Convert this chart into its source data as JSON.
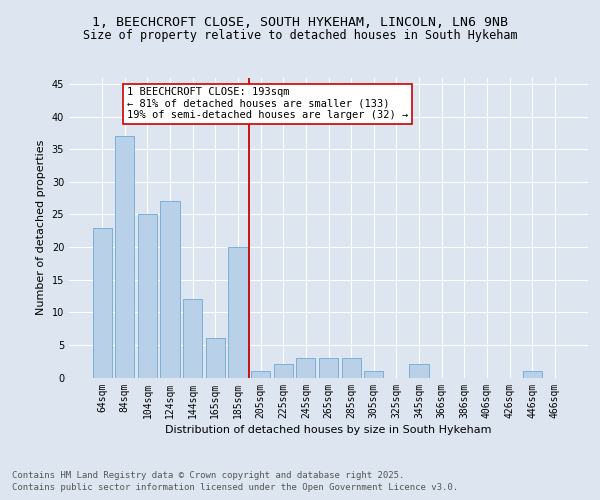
{
  "title_line1": "1, BEECHCROFT CLOSE, SOUTH HYKEHAM, LINCOLN, LN6 9NB",
  "title_line2": "Size of property relative to detached houses in South Hykeham",
  "xlabel": "Distribution of detached houses by size in South Hykeham",
  "ylabel": "Number of detached properties",
  "categories": [
    "64sqm",
    "84sqm",
    "104sqm",
    "124sqm",
    "144sqm",
    "165sqm",
    "185sqm",
    "205sqm",
    "225sqm",
    "245sqm",
    "265sqm",
    "285sqm",
    "305sqm",
    "325sqm",
    "345sqm",
    "366sqm",
    "386sqm",
    "406sqm",
    "426sqm",
    "446sqm",
    "466sqm"
  ],
  "values": [
    23,
    37,
    25,
    27,
    12,
    6,
    20,
    1,
    2,
    3,
    3,
    3,
    1,
    0,
    2,
    0,
    0,
    0,
    0,
    1,
    0
  ],
  "bar_color": "#b8d0e8",
  "bar_edge_color": "#6fa8d0",
  "vline_color": "#cc0000",
  "annotation_text": "1 BEECHCROFT CLOSE: 193sqm\n← 81% of detached houses are smaller (133)\n19% of semi-detached houses are larger (32) →",
  "annotation_box_color": "#ffffff",
  "annotation_box_edge": "#cc0000",
  "ylim": [
    0,
    46
  ],
  "yticks": [
    0,
    5,
    10,
    15,
    20,
    25,
    30,
    35,
    40,
    45
  ],
  "bg_color": "#dde6f0",
  "plot_bg_color": "#dde6f0",
  "footer_line1": "Contains HM Land Registry data © Crown copyright and database right 2025.",
  "footer_line2": "Contains public sector information licensed under the Open Government Licence v3.0.",
  "title_fontsize": 9.5,
  "subtitle_fontsize": 8.5,
  "axis_label_fontsize": 8,
  "tick_fontsize": 7,
  "annotation_fontsize": 7.5,
  "footer_fontsize": 6.5,
  "vline_bar_index": 6
}
